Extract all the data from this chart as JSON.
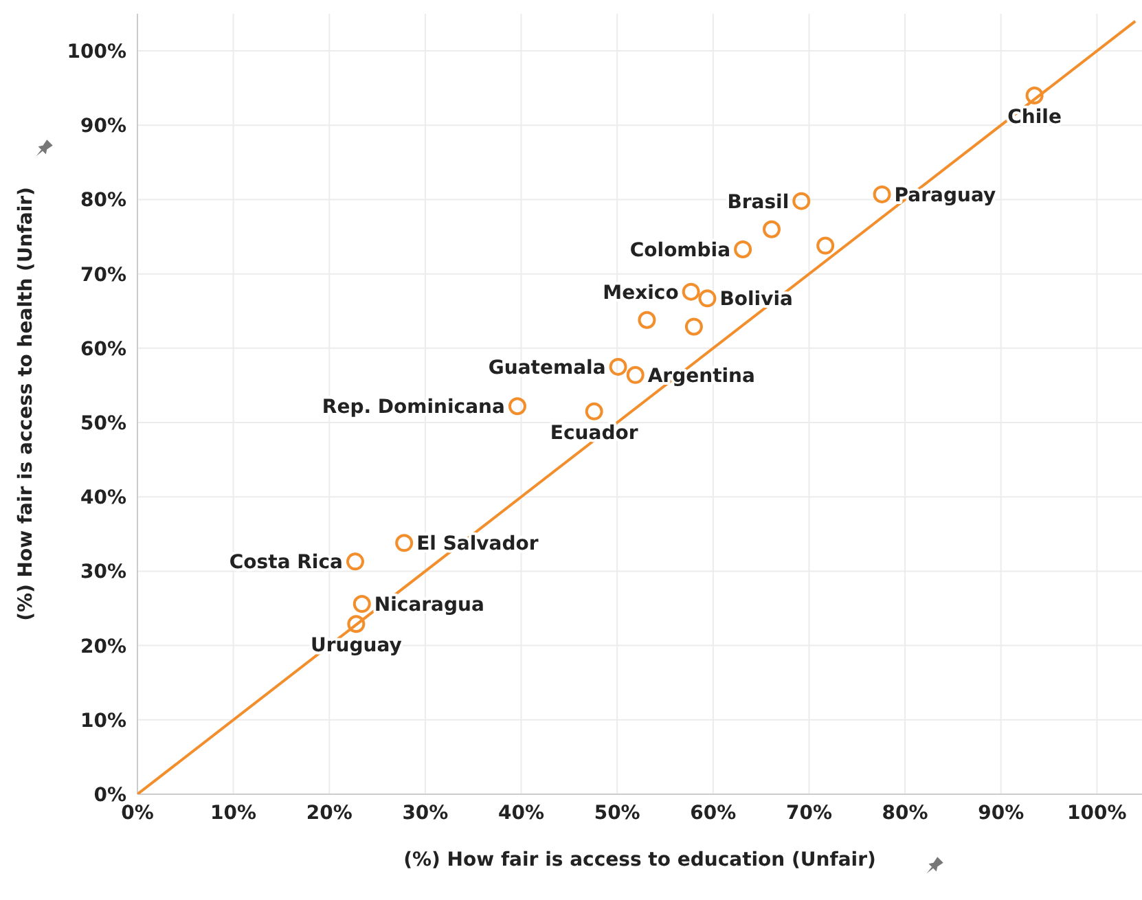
{
  "chart_data": {
    "type": "scatter",
    "xlabel": "(%) How fair is access to education (Unfair)",
    "ylabel": "(%) How fair is access to health (Unfair)",
    "series": [
      {
        "color": "#f28e2b",
        "x": [
          93.5,
          69.2,
          77.6,
          66.1,
          63.1,
          71.7,
          57.7,
          59.4,
          53.1,
          58.0,
          50.1,
          51.9,
          39.6,
          47.6,
          27.8,
          22.7,
          23.4,
          22.8
        ],
        "values": [
          94.0,
          79.8,
          80.7,
          76.0,
          73.3,
          73.8,
          67.6,
          66.7,
          63.8,
          62.9,
          57.5,
          56.4,
          52.2,
          51.5,
          33.8,
          31.3,
          25.6,
          22.9
        ]
      },
      {
        "type": "line",
        "marker": "none",
        "color": "#f28e2b",
        "x": [
          0,
          104
        ],
        "values": [
          0,
          104
        ]
      }
    ],
    "annotations": [
      {
        "text": "Chile",
        "x": 93.5,
        "y": 94.0
      },
      {
        "text": "Brasil",
        "x": 69.2,
        "y": 79.8
      },
      {
        "text": "Paraguay",
        "x": 77.6,
        "y": 80.7
      },
      {
        "text": "Colombia",
        "x": 63.1,
        "y": 73.3
      },
      {
        "text": "Mexico",
        "x": 57.7,
        "y": 67.6
      },
      {
        "text": "Bolivia",
        "x": 59.4,
        "y": 66.7
      },
      {
        "text": "Guatemala",
        "x": 50.1,
        "y": 57.5
      },
      {
        "text": "Argentina",
        "x": 51.9,
        "y": 56.4
      },
      {
        "text": "Rep. Dominicana",
        "x": 39.6,
        "y": 52.2
      },
      {
        "text": "Ecuador",
        "x": 47.6,
        "y": 51.5
      },
      {
        "text": "El Salvador",
        "x": 27.8,
        "y": 33.8
      },
      {
        "text": "Costa Rica",
        "x": 22.7,
        "y": 31.3
      },
      {
        "text": "Nicaragua",
        "x": 23.4,
        "y": 25.6
      },
      {
        "text": "Uruguay",
        "x": 22.8,
        "y": 22.9
      }
    ],
    "xlim": [
      0,
      104.7
    ],
    "ylim": [
      0,
      105
    ],
    "xticks": [
      {
        "value": 0,
        "label": "0%"
      },
      {
        "value": 10,
        "label": "10%"
      },
      {
        "value": 20,
        "label": "20%"
      },
      {
        "value": 30,
        "label": "30%"
      },
      {
        "value": 40,
        "label": "40%"
      },
      {
        "value": 50,
        "label": "50%"
      },
      {
        "value": 60,
        "label": "60%"
      },
      {
        "value": 70,
        "label": "70%"
      },
      {
        "value": 80,
        "label": "80%"
      },
      {
        "value": 90,
        "label": "90%"
      },
      {
        "value": 100,
        "label": "100%"
      }
    ],
    "yticks": [
      {
        "value": 0,
        "label": "0%"
      },
      {
        "value": 10,
        "label": "10%"
      },
      {
        "value": 20,
        "label": "20%"
      },
      {
        "value": 30,
        "label": "30%"
      },
      {
        "value": 40,
        "label": "40%"
      },
      {
        "value": 50,
        "label": "50%"
      },
      {
        "value": 60,
        "label": "60%"
      },
      {
        "value": 70,
        "label": "70%"
      },
      {
        "value": 80,
        "label": "80%"
      },
      {
        "value": 90,
        "label": "90%"
      },
      {
        "value": 100,
        "label": "100%"
      }
    ],
    "grid": true,
    "marker": "circle",
    "line_style": "solid",
    "legend": false
  }
}
